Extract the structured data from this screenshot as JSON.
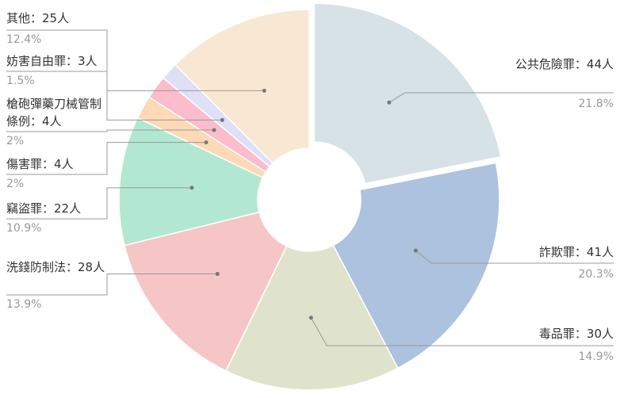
{
  "chart_data": {
    "type": "pie",
    "labels": [
      "公共危險罪：44人",
      "詐欺罪：41人",
      "毒品罪：30人",
      "洗錢防制法：28人",
      "竊盜罪：22人",
      "傷害罪：4人",
      "槍砲彈藥刀械管制條例：4人",
      "妨害自由罪：3人",
      "其他：25人"
    ],
    "values": [
      44,
      41,
      30,
      28,
      22,
      4,
      4,
      3,
      25
    ],
    "percentages": [
      21.8,
      20.3,
      14.9,
      13.9,
      10.9,
      2,
      2,
      1.5,
      12.4
    ],
    "percent_labels": [
      "21.8%",
      "20.3%",
      "14.9%",
      "13.9%",
      "10.9%",
      "2%",
      "2%",
      "1.5%",
      "12.4%"
    ],
    "colors": [
      "#d6e2e6",
      "#adc2de",
      "#dfe3cc",
      "#f6c6c6",
      "#b2e8d2",
      "#fdd9b5",
      "#fbbccc",
      "#dfe0f6",
      "#f8e8d3"
    ]
  }
}
